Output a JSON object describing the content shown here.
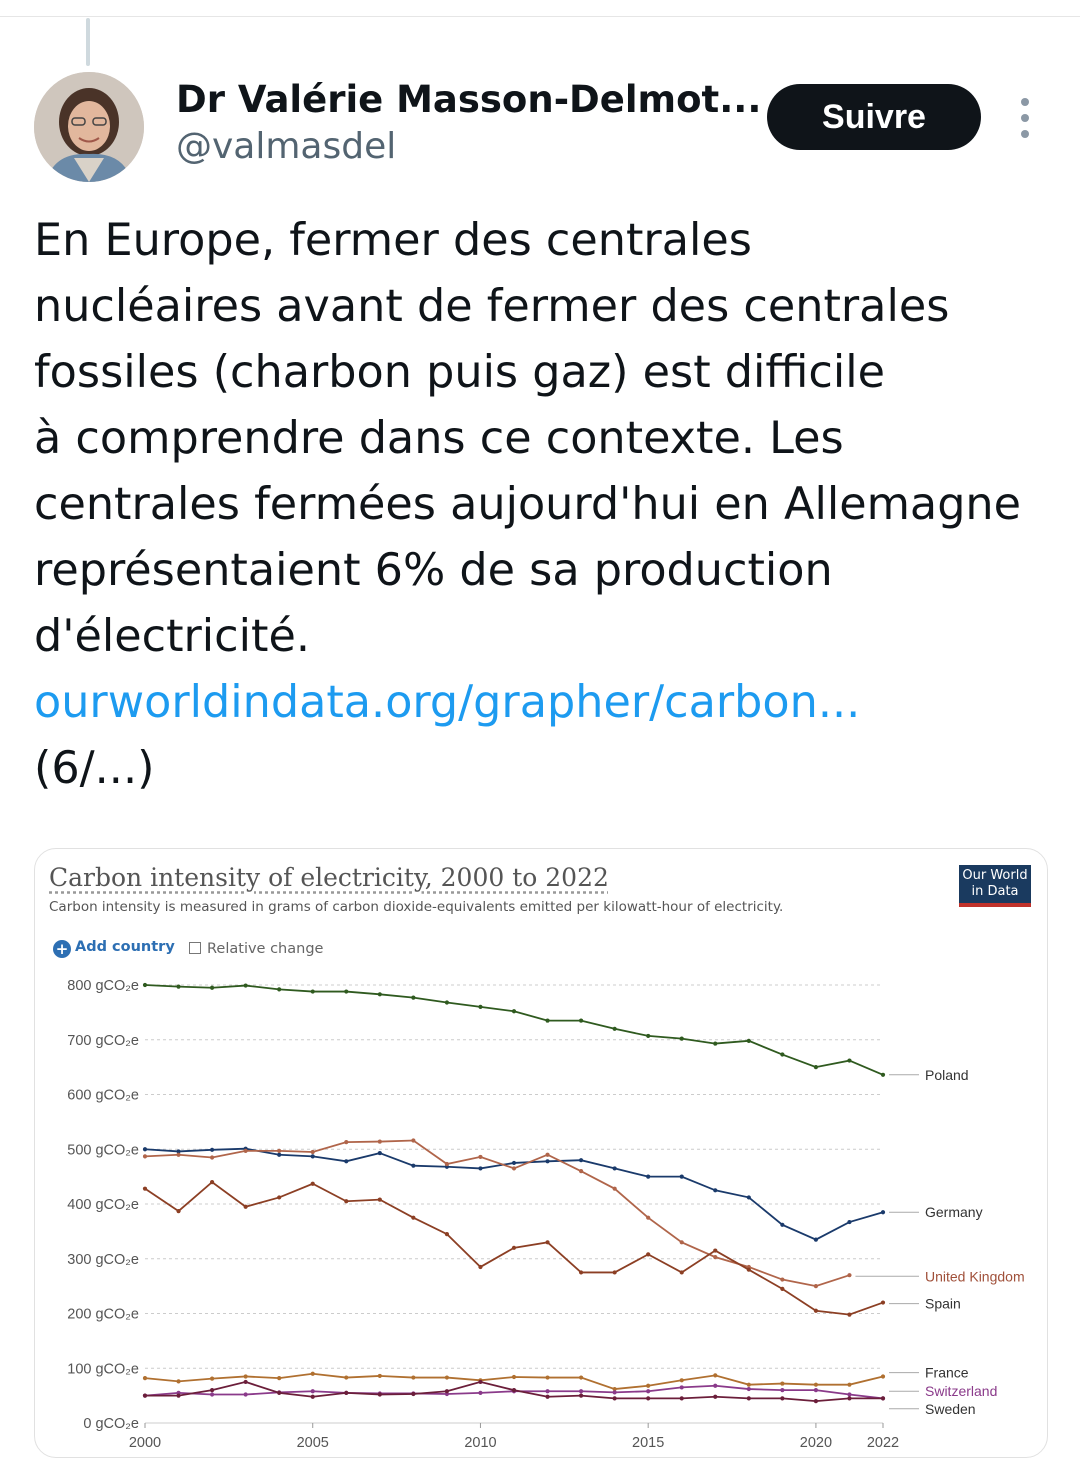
{
  "author": {
    "name": "Dr Valérie Masson-Delmot...",
    "handle": "@valmasdel",
    "follow_label": "Suivre"
  },
  "tweet": {
    "lines": [
      "En Europe, fermer des centrales",
      "nucléaires avant de fermer des centrales",
      "fossiles (charbon puis gaz) est difficile",
      "à comprendre dans ce contexte. Les",
      "centrales fermées aujourd'hui en Allemagne",
      "représentaient 6% de sa production",
      "d'électricité."
    ],
    "link": "ourworldindata.org/grapher/carbon...",
    "counter": "(6/...)"
  },
  "card": {
    "title": "Carbon intensity of electricity, 2000 to 2022",
    "subtitle": "Carbon intensity is measured in grams of carbon dioxide-equivalents emitted per kilowatt-hour of electricity.",
    "logo_line1": "Our World",
    "logo_line2": "in Data",
    "add_country": "Add country",
    "relative_change": "Relative change"
  },
  "colors": {
    "link": "#1d9bf0",
    "follow_bg": "#0f1419"
  },
  "chart_data": {
    "type": "line",
    "title": "Carbon intensity of electricity, 2000 to 2022",
    "ylim": [
      0,
      800
    ],
    "yticks": [
      0,
      100,
      200,
      300,
      400,
      500,
      600,
      700,
      800
    ],
    "ytick_labels": [
      "0 gCO₂e",
      "100 gCO₂e",
      "200 gCO₂e",
      "300 gCO₂e",
      "400 gCO₂e",
      "500 gCO₂e",
      "600 gCO₂e",
      "700 gCO₂e",
      "800 gCO₂e"
    ],
    "xlim": [
      2000,
      2022
    ],
    "xticks": [
      2000,
      2005,
      2010,
      2015,
      2020,
      2022
    ],
    "x": [
      2000,
      2001,
      2002,
      2003,
      2004,
      2005,
      2006,
      2007,
      2008,
      2009,
      2010,
      2011,
      2012,
      2013,
      2014,
      2015,
      2016,
      2017,
      2018,
      2019,
      2020,
      2021,
      2022
    ],
    "grid": true,
    "series": [
      {
        "name": "Poland",
        "color": "#2f5a1f",
        "values": [
          800,
          797,
          795,
          799,
          792,
          788,
          788,
          783,
          777,
          768,
          760,
          752,
          735,
          735,
          720,
          707,
          702,
          693,
          698,
          673,
          650,
          662,
          636
        ]
      },
      {
        "name": "Germany",
        "color": "#1a3a6b",
        "values": [
          500,
          496,
          499,
          501,
          490,
          487,
          478,
          493,
          470,
          468,
          465,
          475,
          478,
          480,
          465,
          450,
          450,
          425,
          412,
          362,
          335,
          367,
          385
        ]
      },
      {
        "name": "United Kingdom",
        "color": "#b0654a",
        "values": [
          487,
          490,
          485,
          497,
          497,
          495,
          513,
          514,
          516,
          473,
          486,
          465,
          490,
          460,
          428,
          375,
          330,
          303,
          285,
          262,
          250,
          270,
          null
        ]
      },
      {
        "name": "Spain",
        "color": "#8c3f24",
        "values": [
          428,
          387,
          440,
          395,
          412,
          437,
          405,
          408,
          375,
          345,
          285,
          320,
          330,
          275,
          275,
          308,
          275,
          315,
          280,
          245,
          205,
          198,
          220
        ]
      },
      {
        "name": "France",
        "color": "#b07030",
        "values": [
          82,
          76,
          81,
          85,
          82,
          90,
          83,
          86,
          83,
          83,
          78,
          84,
          83,
          83,
          62,
          68,
          78,
          87,
          70,
          72,
          70,
          70,
          85
        ]
      },
      {
        "name": "Switzerland",
        "color": "#8a3a8a",
        "values": [
          50,
          55,
          52,
          52,
          56,
          58,
          55,
          54,
          54,
          53,
          55,
          58,
          58,
          58,
          56,
          58,
          65,
          68,
          62,
          60,
          60,
          52,
          45
        ]
      },
      {
        "name": "Sweden",
        "color": "#6b1e3a",
        "values": [
          50,
          50,
          60,
          75,
          55,
          48,
          55,
          52,
          53,
          58,
          75,
          60,
          48,
          50,
          45,
          45,
          45,
          48,
          45,
          45,
          40,
          45,
          45
        ]
      }
    ]
  }
}
